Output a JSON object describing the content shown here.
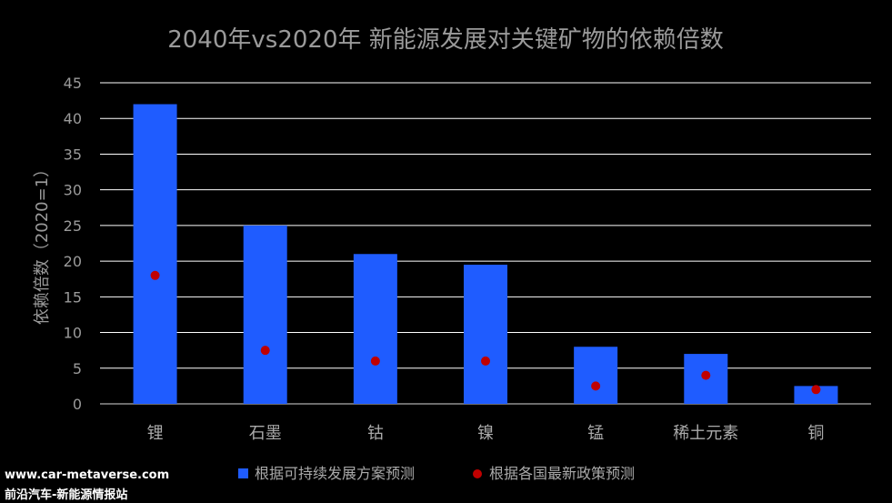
{
  "chart_data": {
    "type": "bar",
    "title": "2040年vs2020年 新能源发展对关键矿物的依赖倍数",
    "ylabel": "依赖倍数（2020=1）",
    "xlabel": "",
    "ylim": [
      0,
      45
    ],
    "yticks": [
      0,
      5,
      10,
      15,
      20,
      25,
      30,
      35,
      40,
      45
    ],
    "grid": true,
    "legend_position": "bottom",
    "categories": [
      "锂",
      "石墨",
      "钴",
      "镍",
      "锰",
      "稀土元素",
      "铜"
    ],
    "series": [
      {
        "name": "根据可持续发展方案预测",
        "mark": "bar",
        "color": "#1f5cff",
        "values": [
          42,
          25,
          21,
          19.5,
          8,
          7,
          2.5
        ]
      },
      {
        "name": "根据各国最新政策预测",
        "mark": "dot",
        "color": "#c00000",
        "values": [
          18,
          7.5,
          6,
          6,
          2.5,
          4,
          2
        ]
      }
    ]
  },
  "watermark": {
    "line1": "www.car-metaverse.com",
    "line2": "前沿汽车-新能源情报站"
  }
}
